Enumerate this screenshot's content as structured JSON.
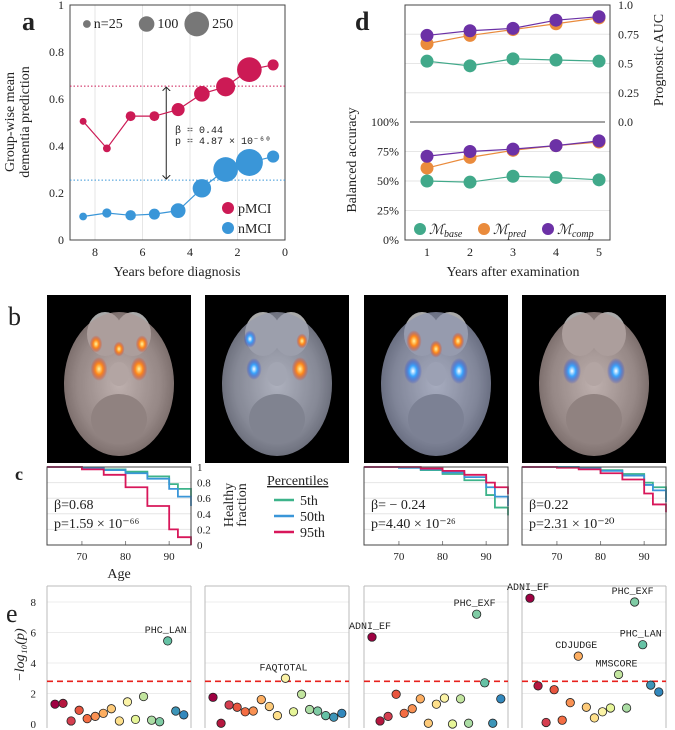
{
  "panel_labels": {
    "a": "a",
    "b": "b",
    "c": "c",
    "d": "d",
    "e": "e"
  },
  "colors": {
    "pMCI": "#cc1a55",
    "nMCI": "#3a96d8",
    "base": "#41a98a",
    "pred": "#ea8b3c",
    "comp": "#6c31a6",
    "p5": "#3db38a",
    "p50": "#3a96d8",
    "p95": "#d8175a",
    "threshold": "#e8201c"
  },
  "chart_data": [
    {
      "id": "a",
      "type": "scatter",
      "xlabel": "Years before diagnosis",
      "ylabel": [
        "Group-wise mean",
        "dementia prediction"
      ],
      "xlim": [
        9,
        0
      ],
      "ylim": [
        0,
        1
      ],
      "xticks": [
        "8",
        "6",
        "4",
        "2",
        "0"
      ],
      "yticks": [
        "0",
        "0.2",
        "0.4",
        "0.6",
        "0.8",
        "1"
      ],
      "size_legend": [
        {
          "label": "n=25",
          "n": 25
        },
        {
          "label": "100",
          "n": 100
        },
        {
          "label": "250",
          "n": 250
        }
      ],
      "x": [
        8.5,
        7.5,
        6.5,
        5.5,
        4.5,
        3.5,
        2.5,
        1.5,
        0.5
      ],
      "series": [
        {
          "name": "pMCI",
          "values": [
            0.505,
            0.39,
            0.527,
            0.527,
            0.555,
            0.622,
            0.652,
            0.725,
            0.745
          ],
          "n": [
            20,
            25,
            40,
            40,
            70,
            100,
            150,
            250,
            50
          ]
        },
        {
          "name": "nMCI",
          "values": [
            0.1,
            0.115,
            0.105,
            0.11,
            0.125,
            0.22,
            0.3,
            0.33,
            0.355
          ],
          "n": [
            25,
            35,
            45,
            50,
            90,
            140,
            250,
            300,
            60
          ]
        }
      ],
      "reference_lines": [
        0.655,
        0.255
      ],
      "annotation": {
        "beta": "β = 0.44",
        "p": "p = 4.87 × 10⁻⁶⁰"
      }
    },
    {
      "id": "d",
      "type": "line",
      "xlabel": "Years after examination",
      "ylabel_left": "Balanced accuracy",
      "ylabel_right": "Prognostic AUC",
      "x": [
        1,
        2,
        3,
        4,
        5
      ],
      "xticks": [
        "1",
        "2",
        "3",
        "4",
        "5"
      ],
      "yticks_left": [
        "0%",
        "25%",
        "50%",
        "75%",
        "100%"
      ],
      "yticks_right": [
        "0.0",
        "0.25",
        "0.5",
        "0.75",
        "1.0"
      ],
      "symbol": "ℳ",
      "auc": [
        {
          "name": "base",
          "values": [
            0.52,
            0.48,
            0.54,
            0.53,
            0.52
          ]
        },
        {
          "name": "pred",
          "values": [
            0.67,
            0.74,
            0.79,
            0.84,
            0.89
          ]
        },
        {
          "name": "comp",
          "values": [
            0.74,
            0.78,
            0.8,
            0.87,
            0.9
          ]
        }
      ],
      "accuracy": [
        {
          "name": "base",
          "values": [
            50,
            49,
            54,
            53,
            51
          ]
        },
        {
          "name": "pred",
          "values": [
            61,
            70,
            76,
            80,
            83
          ]
        },
        {
          "name": "comp",
          "values": [
            71,
            75,
            77,
            80,
            84
          ]
        }
      ]
    },
    {
      "id": "c",
      "type": "line",
      "xlabel": "Age",
      "ylabel": [
        "Healthy",
        "fraction"
      ],
      "xticks": [
        "70",
        "80",
        "90"
      ],
      "yticks": [
        "0",
        "0.2",
        "0.4",
        "0.6",
        "0.8",
        "1"
      ],
      "legend_title": "Percentiles",
      "legend": [
        "5th",
        "50th",
        "95th"
      ],
      "ages": [
        62,
        70,
        75,
        80,
        85,
        90,
        92,
        95
      ],
      "panels": [
        {
          "beta": "β=0.68",
          "p": "p=1.59 × 10⁻⁶⁶",
          "series": [
            [
              1,
              0.99,
              0.97,
              0.94,
              0.88,
              0.78,
              0.72,
              0.62
            ],
            [
              1,
              0.99,
              0.96,
              0.92,
              0.85,
              0.72,
              0.62,
              0.5
            ],
            [
              1,
              0.97,
              0.9,
              0.74,
              0.5,
              0.2,
              0.1,
              0.0
            ]
          ]
        },
        {
          "beta": "β= − 0.24",
          "p": "p=4.40 × 10⁻²⁶",
          "series": [
            [
              1,
              0.99,
              0.96,
              0.91,
              0.83,
              0.64,
              0.48,
              0.38
            ],
            [
              1,
              0.99,
              0.97,
              0.93,
              0.87,
              0.74,
              0.62,
              0.5
            ],
            [
              1,
              1,
              0.98,
              0.95,
              0.9,
              0.8,
              0.74,
              0.65
            ]
          ]
        },
        {
          "beta": "β=0.22",
          "p": "p=2.31 × 10⁻²⁰",
          "series": [
            [
              1,
              1,
              0.99,
              0.96,
              0.91,
              0.8,
              0.74,
              0.58
            ],
            [
              1,
              1,
              0.98,
              0.95,
              0.89,
              0.77,
              0.7,
              0.55
            ],
            [
              1,
              0.99,
              0.97,
              0.92,
              0.84,
              0.66,
              0.52,
              0.42
            ]
          ]
        }
      ]
    },
    {
      "id": "e",
      "type": "scatter",
      "ylabel": "−log₁₀(p)",
      "yticks": [
        "0",
        "2",
        "4",
        "6",
        "8"
      ],
      "threshold": 2.8,
      "panels": [
        {
          "values": [
            1.3,
            1.35,
            0.2,
            0.9,
            0.35,
            0.5,
            0.7,
            1.0,
            0.2,
            1.45,
            0.3,
            1.8,
            0.25,
            0.15,
            5.45,
            0.85,
            0.6
          ],
          "labels": [
            {
              "i": 14,
              "text": "PHC_LAN"
            }
          ]
        },
        {
          "values": [
            1.75,
            0.05,
            1.25,
            1.1,
            0.8,
            0.85,
            1.6,
            1.15,
            0.55,
            3.0,
            0.8,
            1.95,
            0.95,
            0.85,
            0.55,
            0.45,
            0.7
          ],
          "labels": [
            {
              "i": 9,
              "text": "FAQTOTAL"
            }
          ]
        },
        {
          "values": [
            5.7,
            0.2,
            0.5,
            1.95,
            0.7,
            1.0,
            1.65,
            0.05,
            1.3,
            1.7,
            0.0,
            1.65,
            0.05,
            7.2,
            2.7,
            0.05,
            1.65
          ],
          "labels": [
            {
              "i": 0,
              "text": "ADNI_EF"
            },
            {
              "i": 13,
              "text": "PHC_EXF"
            }
          ]
        },
        {
          "values": [
            8.25,
            2.5,
            0.1,
            2.25,
            0.25,
            1.4,
            4.45,
            1.1,
            0.4,
            0.8,
            1.05,
            3.25,
            1.05,
            8.0,
            5.2,
            2.55,
            2.1
          ],
          "labels": [
            {
              "i": 0,
              "text": "ADNI_EF"
            },
            {
              "i": 6,
              "text": "CDJUDGE"
            },
            {
              "i": 11,
              "text": "MMSCORE"
            },
            {
              "i": 13,
              "text": "PHC_EXF"
            },
            {
              "i": 14,
              "text": "PHC_LAN"
            }
          ]
        }
      ],
      "palette": [
        "#9e0142",
        "#b5173f",
        "#d53e4f",
        "#e8553f",
        "#f46d43",
        "#f99153",
        "#fdae61",
        "#fdca79",
        "#fee08b",
        "#fbf3a6",
        "#e6f598",
        "#c2e59f",
        "#abdda4",
        "#7fcba4",
        "#66c2a5",
        "#3d95b8",
        "#3288bd"
      ]
    }
  ]
}
